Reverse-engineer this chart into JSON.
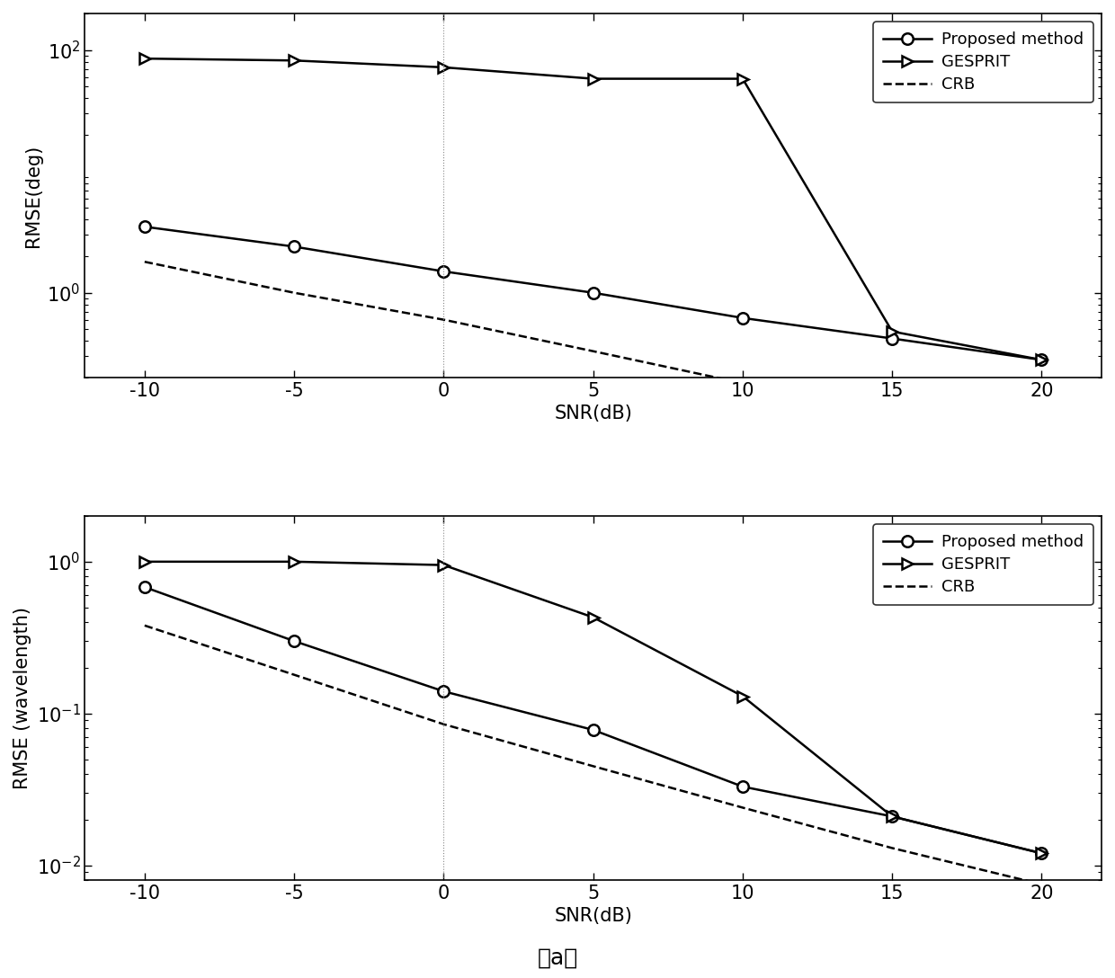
{
  "snr": [
    -10,
    -5,
    0,
    5,
    10,
    15,
    20
  ],
  "top": {
    "proposed": [
      3.5,
      2.4,
      1.5,
      1.0,
      0.62,
      0.42,
      0.28
    ],
    "gesprit": [
      85,
      82,
      72,
      58,
      58,
      0.48,
      0.28
    ],
    "crb": [
      1.8,
      1.0,
      0.6,
      0.33,
      0.18,
      0.1,
      0.055
    ],
    "ylabel": "RMSE(deg)",
    "ylim": [
      0.2,
      200
    ],
    "yticks": [
      1.0,
      100
    ],
    "ytick_labels": [
      "10$^0$",
      "10$^2$"
    ]
  },
  "bottom": {
    "proposed": [
      0.68,
      0.3,
      0.14,
      0.078,
      0.033,
      0.021,
      0.012
    ],
    "gesprit": [
      1.0,
      1.0,
      0.95,
      0.43,
      0.13,
      0.021,
      0.012
    ],
    "crb": [
      0.38,
      0.18,
      0.085,
      0.045,
      0.024,
      0.013,
      0.0075
    ],
    "ylabel": "RMSE (wavelength)",
    "ylim": [
      0.008,
      2.0
    ],
    "yticks": [
      0.01,
      0.1,
      1.0
    ],
    "ytick_labels": [
      "10$^{-2}$",
      "10$^{-1}$",
      "10$^0$"
    ]
  },
  "xlabel": "SNR(dB)",
  "caption": "（a）",
  "legend_labels": [
    "Proposed method",
    "GESPRIT",
    "CRB"
  ],
  "line_color": "#000000",
  "bg_color": "#ffffff",
  "vline_x": 0,
  "xticks": [
    -10,
    -5,
    0,
    5,
    10,
    15,
    20
  ]
}
